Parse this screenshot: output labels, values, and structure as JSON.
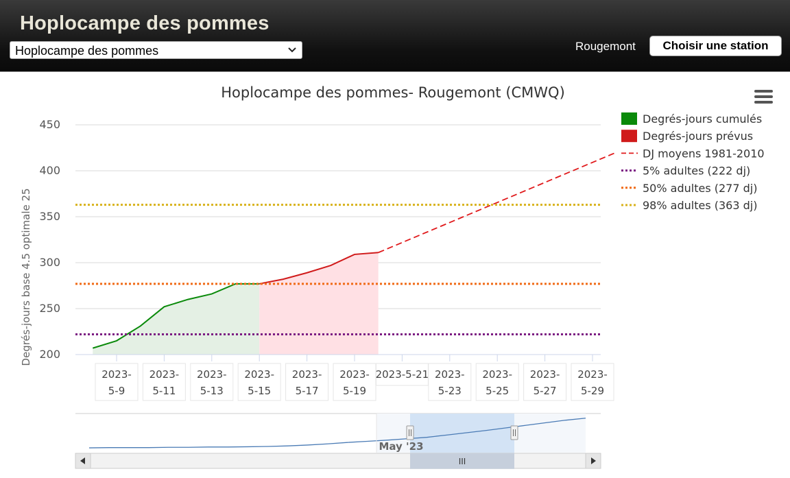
{
  "header": {
    "title": "Hoplocampe des pommes",
    "species_select": {
      "value": "Hoplocampe des pommes"
    },
    "station_name": "Rougemont",
    "choose_station_label": "Choisir une station"
  },
  "colors": {
    "cumulative": "#0a8a0a",
    "cumulative_area": "#e4f0e4",
    "forecast": "#d01a1a",
    "forecast_area": "#ffe0e4",
    "normals": "#e0191b",
    "threshold_5": "#7b1b82",
    "threshold_50": "#f06a16",
    "threshold_98": "#d8b21c",
    "navigator_line": "#4a7bb5"
  },
  "chart_data": {
    "type": "line",
    "title": "Hoplocampe des pommes- Rougemont (CMWQ)",
    "ylabel": "Degrés-jours base 4.5 optimale 25",
    "ylim": [
      200,
      450
    ],
    "yticks": [
      200,
      250,
      300,
      350,
      400,
      450
    ],
    "xlim": [
      "2023-05-08",
      "2023-05-30"
    ],
    "xticks": [
      "2023-5-9",
      "2023-5-11",
      "2023-5-13",
      "2023-5-15",
      "2023-5-17",
      "2023-5-19",
      "2023-5-21",
      "2023-5-23",
      "2023-5-25",
      "2023-5-27",
      "2023-5-29"
    ],
    "legend_position": "right",
    "grid": true,
    "series": [
      {
        "name": "Degrés-jours cumulés",
        "style": "area",
        "x": [
          "2023-05-08",
          "2023-05-09",
          "2023-05-10",
          "2023-05-11",
          "2023-05-12",
          "2023-05-13",
          "2023-05-14",
          "2023-05-15"
        ],
        "y": [
          207,
          215,
          231,
          252,
          260,
          266,
          277,
          277
        ]
      },
      {
        "name": "Degrés-jours prévus",
        "style": "area",
        "x": [
          "2023-05-15",
          "2023-05-16",
          "2023-05-17",
          "2023-05-18",
          "2023-05-19",
          "2023-05-20"
        ],
        "y": [
          277,
          282,
          289,
          297,
          309,
          311
        ]
      },
      {
        "name": "DJ moyens 1981-2010",
        "style": "dashed",
        "x": [
          "2023-05-20",
          "2023-05-30"
        ],
        "y": [
          311,
          420
        ]
      },
      {
        "name": "5% adultes (222 dj)",
        "style": "dotted",
        "y_const": 222
      },
      {
        "name": "50% adultes (277 dj)",
        "style": "dotted",
        "y_const": 277
      },
      {
        "name": "98% adultes (363 dj)",
        "style": "dotted",
        "y_const": 363
      }
    ],
    "navigator": {
      "label": "May '23",
      "scrollbar_label": "III",
      "series": [
        207,
        208,
        208,
        208,
        209,
        209,
        210,
        210,
        211,
        212,
        214,
        217,
        221,
        226,
        230,
        234,
        239,
        244,
        252,
        260,
        268,
        277,
        286,
        295,
        304,
        311
      ]
    }
  }
}
